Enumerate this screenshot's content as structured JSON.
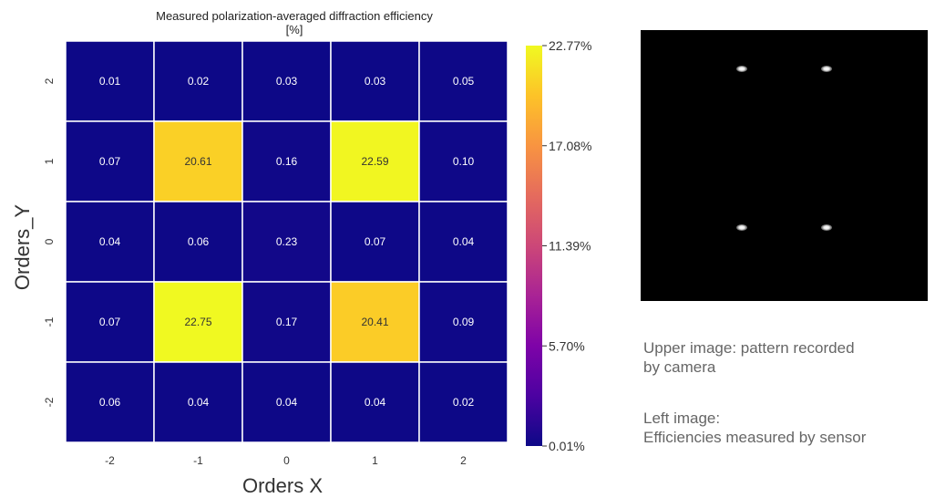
{
  "chart_data": {
    "type": "heatmap",
    "title": "Measured polarization-averaged diffraction efficiency",
    "subtitle": "[%]",
    "xlabel": "Orders  X",
    "ylabel": "Orders_Y",
    "x_categories": [
      "-2",
      "-1",
      "0",
      "1",
      "2"
    ],
    "y_categories": [
      "2",
      "1",
      "0",
      "-1",
      "-2"
    ],
    "values": [
      [
        0.01,
        0.02,
        0.03,
        0.03,
        0.05
      ],
      [
        0.07,
        20.61,
        0.16,
        22.59,
        0.1
      ],
      [
        0.04,
        0.06,
        0.23,
        0.07,
        0.04
      ],
      [
        0.07,
        22.75,
        0.17,
        20.41,
        0.09
      ],
      [
        0.06,
        0.04,
        0.04,
        0.04,
        0.02
      ]
    ],
    "value_labels": [
      [
        "0.01",
        "0.02",
        "0.03",
        "0.03",
        "0.05"
      ],
      [
        "0.07",
        "20.61",
        "0.16",
        "22.59",
        "0.10"
      ],
      [
        "0.04",
        "0.06",
        "0.23",
        "0.07",
        "0.04"
      ],
      [
        "0.07",
        "22.75",
        "0.17",
        "20.41",
        "0.09"
      ],
      [
        "0.06",
        "0.04",
        "0.04",
        "0.04",
        "0.02"
      ]
    ],
    "colorbar": {
      "colormap": "plasma",
      "min": 0.01,
      "max": 22.77,
      "ticks": [
        {
          "value": 22.77,
          "label": "22.77%"
        },
        {
          "value": 17.08,
          "label": "17.08%"
        },
        {
          "value": 11.39,
          "label": "11.39%"
        },
        {
          "value": 5.7,
          "label": "5.70%"
        },
        {
          "value": 0.01,
          "label": "0.01%"
        }
      ]
    },
    "grid_lines": true
  },
  "camera_image": {
    "spots": [
      {
        "x_order": -1,
        "y_order": 1
      },
      {
        "x_order": 1,
        "y_order": 1
      },
      {
        "x_order": -1,
        "y_order": -1
      },
      {
        "x_order": 1,
        "y_order": -1
      }
    ]
  },
  "notes": {
    "upper_line1": "Upper image: pattern recorded",
    "upper_line2": "by camera",
    "left_line1": "Left image:",
    "left_line2": "Efficiencies measured by sensor"
  },
  "colors": {
    "low": "#0d0887",
    "high": "#f0f921",
    "cell_border": "#ffffff",
    "camera_bg": "#000000"
  }
}
